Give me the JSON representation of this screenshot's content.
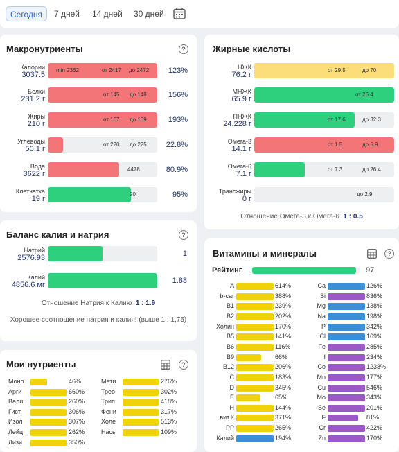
{
  "tabs": [
    "Сегодня",
    "7 дней",
    "14 дней",
    "30 дней"
  ],
  "macros": {
    "title": "Макронутриенты",
    "rows": [
      {
        "name": "Калории",
        "value": "3037.5",
        "fill": 1,
        "color": "#f47577",
        "marks": [
          "min 2362",
          "от 2417",
          "до 2472"
        ],
        "pct": "123%"
      },
      {
        "name": "Белки",
        "value": "231.2 г",
        "fill": 1,
        "color": "#f47577",
        "marks": [
          "от 145",
          "до 148"
        ],
        "pct": "156%"
      },
      {
        "name": "Жиры",
        "value": "210 г",
        "fill": 1,
        "color": "#f47577",
        "marks": [
          "от 107",
          "до 109"
        ],
        "pct": "193%"
      },
      {
        "name": "Углеводы",
        "value": "50.1 г",
        "fill": 0.14,
        "color": "#f47577",
        "marks": [
          "от 220",
          "до 225"
        ],
        "pct": "22.8%"
      },
      {
        "name": "Вода",
        "value": "3622 г",
        "fill": 0.65,
        "color": "#f47577",
        "marks": [
          "4478"
        ],
        "pct": "80.9%"
      },
      {
        "name": "Клетчатка",
        "value": "19 г",
        "fill": 0.76,
        "color": "#2ecf7d",
        "marks": [
          "20"
        ],
        "pct": "95%"
      }
    ]
  },
  "fats": {
    "title": "Жирные кислоты",
    "rows": [
      {
        "name": "НЖК",
        "value": "76.2 г",
        "fill": 1,
        "color": "#fbdd7a",
        "marks": [
          "от 29.5",
          "до 70"
        ]
      },
      {
        "name": "МНЖК",
        "value": "65.9 г",
        "fill": 1,
        "color": "#2ecf7d",
        "marks": [
          "от 26.4"
        ]
      },
      {
        "name": "ПНЖК",
        "value": "24.228 г",
        "fill": 0.72,
        "color": "#2ecf7d",
        "marks": [
          "от 17.6",
          "до 32.3"
        ]
      },
      {
        "name": "Омега-3",
        "value": "14.1 г",
        "fill": 1,
        "color": "#f47577",
        "marks": [
          "от 1.5",
          "до 5.9"
        ]
      },
      {
        "name": "Омега-6",
        "value": "7.1 г",
        "fill": 0.36,
        "color": "#2ecf7d",
        "marks": [
          "от 7.3",
          "до 26.4"
        ]
      },
      {
        "name": "Трансжиры",
        "value": "0 г",
        "fill": 0,
        "color": "#2ecf7d",
        "marks": [
          "до 2.9"
        ]
      }
    ],
    "ratio_label": "Отношение Омега-3 к Омега-6",
    "ratio_value": "1 : 0.5"
  },
  "balance": {
    "title": "Баланс калия и натрия",
    "rows": [
      {
        "name": "Натрий",
        "value": "2576.93",
        "fill": 0.5,
        "pct": "1"
      },
      {
        "name": "Калий",
        "value": "4856.6 мг",
        "fill": 1,
        "pct": "1.88"
      }
    ],
    "ratio_label": "Отношение Натрия к Калию",
    "ratio_value": "1 : 1.9",
    "message": "Хорошее соотношение натрия и калия! (выше 1 : 1,75)"
  },
  "my": {
    "title": "Мои нутриенты",
    "left": [
      {
        "n": "Моно",
        "p": "46%",
        "f": 0.46
      },
      {
        "n": "Арги",
        "p": "660%",
        "f": 1
      },
      {
        "n": "Вали",
        "p": "260%",
        "f": 1
      },
      {
        "n": "Гист",
        "p": "306%",
        "f": 1
      },
      {
        "n": "Изол",
        "p": "307%",
        "f": 1
      },
      {
        "n": "Лейц",
        "p": "262%",
        "f": 1
      },
      {
        "n": "Лизи",
        "p": "350%",
        "f": 1
      }
    ],
    "right": [
      {
        "n": "Мети",
        "p": "276%",
        "f": 1
      },
      {
        "n": "Трео",
        "p": "302%",
        "f": 1
      },
      {
        "n": "Трип",
        "p": "418%",
        "f": 1
      },
      {
        "n": "Фени",
        "p": "317%",
        "f": 1
      },
      {
        "n": "Холе",
        "p": "513%",
        "f": 1
      },
      {
        "n": "Насы",
        "p": "109%",
        "f": 1
      }
    ]
  },
  "vit": {
    "title": "Витамины и минералы",
    "rating_label": "Рейтинг",
    "rating_value": "97",
    "rating_fill": 0.97,
    "left": [
      {
        "n": "A",
        "p": "614%",
        "f": 1,
        "c": "#f0d20a"
      },
      {
        "n": "b-car",
        "p": "388%",
        "f": 1,
        "c": "#f0d20a"
      },
      {
        "n": "B1",
        "p": "239%",
        "f": 1,
        "c": "#f0d20a"
      },
      {
        "n": "B2",
        "p": "202%",
        "f": 1,
        "c": "#f0d20a"
      },
      {
        "n": "Холин",
        "p": "170%",
        "f": 1,
        "c": "#f0d20a"
      },
      {
        "n": "B5",
        "p": "141%",
        "f": 1,
        "c": "#f0d20a"
      },
      {
        "n": "B6",
        "p": "116%",
        "f": 1,
        "c": "#f0d20a"
      },
      {
        "n": "B9",
        "p": "66%",
        "f": 0.66,
        "c": "#f0d20a"
      },
      {
        "n": "B12",
        "p": "206%",
        "f": 1,
        "c": "#f0d20a"
      },
      {
        "n": "C",
        "p": "183%",
        "f": 1,
        "c": "#f0d20a"
      },
      {
        "n": "D",
        "p": "345%",
        "f": 1,
        "c": "#f0d20a"
      },
      {
        "n": "E",
        "p": "65%",
        "f": 0.65,
        "c": "#f0d20a"
      },
      {
        "n": "H",
        "p": "144%",
        "f": 1,
        "c": "#f0d20a"
      },
      {
        "n": "вит.К",
        "p": "371%",
        "f": 1,
        "c": "#f0d20a"
      },
      {
        "n": "PP",
        "p": "265%",
        "f": 1,
        "c": "#f0d20a"
      },
      {
        "n": "Калий",
        "p": "194%",
        "f": 1,
        "c": "#3b8fd6"
      }
    ],
    "right": [
      {
        "n": "Ca",
        "p": "126%",
        "f": 1,
        "c": "#3b8fd6"
      },
      {
        "n": "Si",
        "p": "836%",
        "f": 1,
        "c": "#9b59c6"
      },
      {
        "n": "Mg",
        "p": "138%",
        "f": 1,
        "c": "#3b8fd6"
      },
      {
        "n": "Na",
        "p": "198%",
        "f": 1,
        "c": "#3b8fd6"
      },
      {
        "n": "P",
        "p": "342%",
        "f": 1,
        "c": "#3b8fd6"
      },
      {
        "n": "Cl",
        "p": "169%",
        "f": 1,
        "c": "#3b8fd6"
      },
      {
        "n": "Fe",
        "p": "285%",
        "f": 1,
        "c": "#9b59c6"
      },
      {
        "n": "I",
        "p": "234%",
        "f": 1,
        "c": "#9b59c6"
      },
      {
        "n": "Co",
        "p": "1238%",
        "f": 1,
        "c": "#9b59c6"
      },
      {
        "n": "Mn",
        "p": "177%",
        "f": 1,
        "c": "#9b59c6"
      },
      {
        "n": "Cu",
        "p": "546%",
        "f": 1,
        "c": "#9b59c6"
      },
      {
        "n": "Mo",
        "p": "343%",
        "f": 1,
        "c": "#9b59c6"
      },
      {
        "n": "Se",
        "p": "201%",
        "f": 1,
        "c": "#9b59c6"
      },
      {
        "n": "F",
        "p": "81%",
        "f": 0.81,
        "c": "#9b59c6"
      },
      {
        "n": "Cr",
        "p": "422%",
        "f": 1,
        "c": "#9b59c6"
      },
      {
        "n": "Zn",
        "p": "170%",
        "f": 1,
        "c": "#9b59c6"
      }
    ]
  }
}
